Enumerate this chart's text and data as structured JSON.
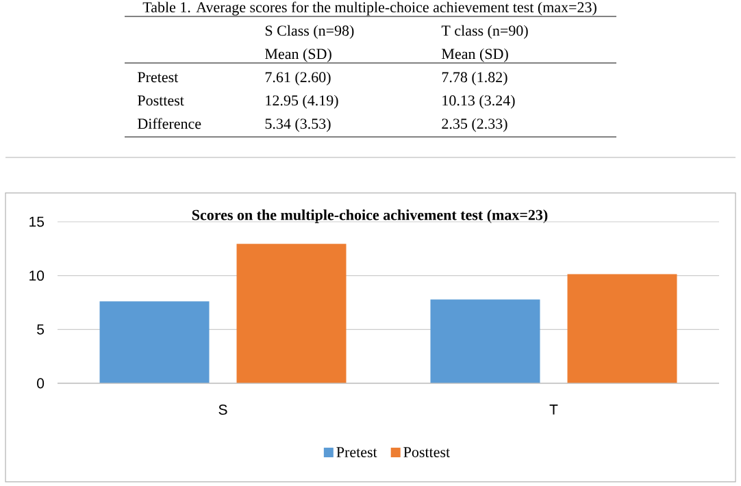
{
  "chart_data": {
    "type": "bar",
    "title": "Scores on the multiple-choice achivement test (max=23)",
    "categories": [
      "S",
      "T"
    ],
    "series": [
      {
        "name": "Pretest",
        "color": "#5b9bd5",
        "values": [
          7.61,
          7.78
        ]
      },
      {
        "name": "Posttest",
        "color": "#ed7d31",
        "values": [
          12.95,
          10.13
        ]
      }
    ],
    "ylim": [
      0,
      15
    ],
    "yticks": [
      0,
      5,
      10,
      15
    ],
    "grid": "y",
    "legend": "bottom",
    "annotations": [
      "Table 1. Average scores for the multiple-choice achievement test (max=23)",
      "S Class (n=98)",
      "T class (n=90)",
      "Mean (SD)",
      "Mean (SD)",
      "Pretest",
      "7.61 (2.60)",
      "7.78 (1.82)",
      "Posttest",
      "12.95 (4.19)",
      "10.13 (3.24)",
      "Difference",
      "5.34 (3.53)",
      "2.35 (2.33)"
    ]
  }
}
